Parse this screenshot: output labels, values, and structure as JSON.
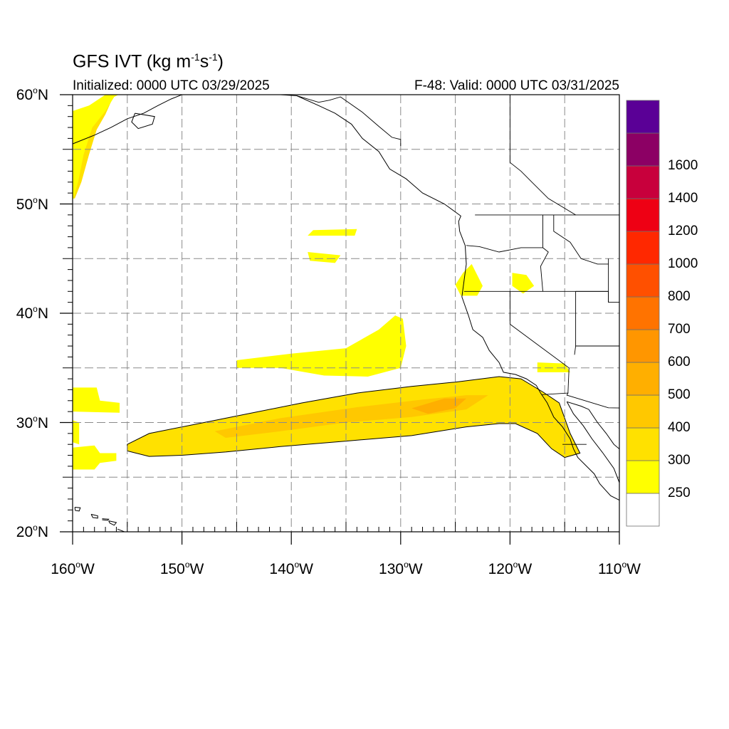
{
  "title": {
    "prefix": "GFS IVT (kg m",
    "exp1": "-1",
    "mid": "s",
    "exp2": "-1",
    "suffix": ")"
  },
  "subtitle_left": "Initialized: 0000 UTC 03/29/2025",
  "subtitle_right": "F-48: Valid: 0000 UTC 03/31/2025",
  "lat_labels": [
    {
      "num": "60",
      "suffix": "N",
      "lat": 60
    },
    {
      "num": "50",
      "suffix": "N",
      "lat": 50
    },
    {
      "num": "40",
      "suffix": "N",
      "lat": 40
    },
    {
      "num": "30",
      "suffix": "N",
      "lat": 30
    },
    {
      "num": "20",
      "suffix": "N",
      "lat": 20
    }
  ],
  "lon_labels": [
    {
      "num": "160",
      "suffix": "W",
      "lon": -160
    },
    {
      "num": "150",
      "suffix": "W",
      "lon": -150
    },
    {
      "num": "140",
      "suffix": "W",
      "lon": -140
    },
    {
      "num": "130",
      "suffix": "W",
      "lon": -130
    },
    {
      "num": "120",
      "suffix": "W",
      "lon": -120
    },
    {
      "num": "110",
      "suffix": "W",
      "lon": -110
    }
  ],
  "map_extent": {
    "lon_min": -160,
    "lon_max": -110,
    "lat_min": 20,
    "lat_max": 60
  },
  "colorbar": {
    "labels": [
      "250",
      "300",
      "400",
      "500",
      "600",
      "700",
      "800",
      "1000",
      "1200",
      "1400",
      "1600"
    ],
    "colors": [
      "#ffffff",
      "#ffff00",
      "#ffe100",
      "#ffc800",
      "#ffaf00",
      "#ff9600",
      "#ff7300",
      "#ff5000",
      "#ff2800",
      "#ee0014",
      "#c8003c",
      "#8c0064",
      "#5a0096"
    ]
  },
  "ivt_regions": [
    {
      "name": "atmospheric-river",
      "color": "#ffe100",
      "points": [
        [
          -155,
          28
        ],
        [
          -153,
          29
        ],
        [
          -149,
          29.8
        ],
        [
          -144,
          30.8
        ],
        [
          -139,
          31.8
        ],
        [
          -134,
          32.7
        ],
        [
          -129,
          33.3
        ],
        [
          -125,
          33.7
        ],
        [
          -121,
          34.2
        ],
        [
          -119,
          34
        ],
        [
          -117,
          32.8
        ],
        [
          -115.5,
          31.8
        ],
        [
          -114.5,
          29
        ],
        [
          -113.6,
          27.2
        ],
        [
          -115,
          26.8
        ],
        [
          -116.2,
          27.6
        ],
        [
          -117.5,
          29
        ],
        [
          -119.5,
          29.9
        ],
        [
          -121,
          29.9
        ],
        [
          -124,
          29.6
        ],
        [
          -129,
          28.8
        ],
        [
          -135,
          28.3
        ],
        [
          -141,
          27.8
        ],
        [
          -146,
          27.3
        ],
        [
          -150,
          27
        ],
        [
          -153,
          26.9
        ],
        [
          -155,
          27.4
        ]
      ]
    },
    {
      "name": "ar-core",
      "color": "#ffc800",
      "points": [
        [
          -147,
          29.2
        ],
        [
          -141,
          30.4
        ],
        [
          -134,
          31.4
        ],
        [
          -128,
          32.1
        ],
        [
          -124,
          32.5
        ],
        [
          -122,
          32.5
        ],
        [
          -124,
          31.2
        ],
        [
          -129,
          30.5
        ],
        [
          -135,
          30
        ],
        [
          -141,
          29.2
        ],
        [
          -146,
          28.6
        ]
      ]
    },
    {
      "name": "ar-max",
      "color": "#ffaf00",
      "points": [
        [
          -129,
          31.3
        ],
        [
          -126,
          32.2
        ],
        [
          -124,
          32.2
        ],
        [
          -125,
          31.3
        ],
        [
          -127.5,
          30.8
        ]
      ]
    },
    {
      "name": "band-35n",
      "color": "#ffff00",
      "points": [
        [
          -145,
          35.7
        ],
        [
          -140,
          36.3
        ],
        [
          -135,
          36.8
        ],
        [
          -132,
          38.5
        ],
        [
          -130.5,
          39.8
        ],
        [
          -129.8,
          39.5
        ],
        [
          -129.5,
          37
        ],
        [
          -130,
          35
        ],
        [
          -133,
          34.2
        ],
        [
          -137,
          34.3
        ],
        [
          -141,
          35
        ],
        [
          -145,
          35
        ]
      ]
    },
    {
      "name": "blob-48n",
      "color": "#ffff00",
      "points": [
        [
          -138,
          47.6
        ],
        [
          -134,
          47.7
        ],
        [
          -134.2,
          47.1
        ],
        [
          -138.5,
          47.1
        ]
      ]
    },
    {
      "name": "blob-45n",
      "color": "#ffff00",
      "points": [
        [
          -138.5,
          45.6
        ],
        [
          -135.5,
          45.3
        ],
        [
          -136,
          44.6
        ],
        [
          -138.3,
          44.8
        ]
      ]
    },
    {
      "name": "blob-ncal",
      "color": "#ffff00",
      "points": [
        [
          -124.3,
          43.7
        ],
        [
          -123.5,
          44.5
        ],
        [
          -123,
          43.5
        ],
        [
          -122.5,
          42.5
        ],
        [
          -123,
          41.6
        ],
        [
          -124.5,
          41.6
        ],
        [
          -125,
          42.6
        ]
      ]
    },
    {
      "name": "blob-nevada",
      "color": "#ffff00",
      "points": [
        [
          -119.8,
          43.7
        ],
        [
          -118.5,
          43.5
        ],
        [
          -117.8,
          42.5
        ],
        [
          -118.8,
          41.8
        ],
        [
          -119.8,
          42.5
        ]
      ]
    },
    {
      "name": "blob-socal",
      "color": "#ffff00",
      "points": [
        [
          -117.5,
          35.5
        ],
        [
          -115,
          35.4
        ],
        [
          -114.5,
          34.6
        ],
        [
          -117.5,
          34.6
        ]
      ]
    },
    {
      "name": "blob-w33n",
      "color": "#ffff00",
      "points": [
        [
          -160,
          33.2
        ],
        [
          -157.8,
          33.2
        ],
        [
          -157.5,
          32
        ],
        [
          -155.7,
          31.8
        ],
        [
          -155.7,
          30.9
        ],
        [
          -160,
          31
        ]
      ]
    },
    {
      "name": "blob-w27n",
      "color": "#ffff00",
      "points": [
        [
          -160,
          27.7
        ],
        [
          -158,
          27.9
        ],
        [
          -157.5,
          27.2
        ],
        [
          -156,
          27.2
        ],
        [
          -156,
          26.5
        ],
        [
          -157.5,
          26.3
        ],
        [
          -158,
          25.7
        ],
        [
          -160,
          25.7
        ]
      ]
    },
    {
      "name": "blob-w30n",
      "color": "#ffff00",
      "points": [
        [
          -160,
          30.2
        ],
        [
          -159.4,
          30
        ],
        [
          -159.4,
          28
        ],
        [
          -160,
          28.2
        ]
      ]
    },
    {
      "name": "blob-alaska",
      "color": "#ffe100",
      "points": [
        [
          -160,
          57.8
        ],
        [
          -157.5,
          58.8
        ],
        [
          -156.5,
          59.8
        ],
        [
          -156.6,
          60
        ],
        [
          -156.2,
          60
        ],
        [
          -157,
          58.2
        ],
        [
          -157.8,
          56.8
        ],
        [
          -158.5,
          54.5
        ],
        [
          -159.2,
          52
        ],
        [
          -159.8,
          50.5
        ],
        [
          -160,
          50.5
        ]
      ]
    },
    {
      "name": "blob-alaska-edge",
      "color": "#ffff00",
      "points": [
        [
          -160,
          50.3
        ],
        [
          -159.5,
          52
        ],
        [
          -159,
          54.5
        ],
        [
          -158.2,
          57
        ],
        [
          -157,
          58.5
        ],
        [
          -156.2,
          59.8
        ],
        [
          -155.8,
          60
        ],
        [
          -157,
          60
        ],
        [
          -158.5,
          59
        ],
        [
          -160,
          58.5
        ]
      ]
    }
  ],
  "coast_lines": [
    {
      "name": "north-american-coast",
      "points": [
        [
          -139.5,
          59.9
        ],
        [
          -137.5,
          59
        ],
        [
          -136,
          58.3
        ],
        [
          -134.5,
          57.3
        ],
        [
          -133.5,
          56
        ],
        [
          -132,
          54.8
        ],
        [
          -131,
          53.2
        ],
        [
          -129.5,
          52.3
        ],
        [
          -128,
          51
        ],
        [
          -126,
          50
        ],
        [
          -124.5,
          48.9
        ],
        [
          -124.7,
          48.4
        ],
        [
          -124.6,
          47.5
        ],
        [
          -124.1,
          46.2
        ],
        [
          -124,
          44.5
        ],
        [
          -124.2,
          43
        ],
        [
          -124.4,
          41.5
        ],
        [
          -123.8,
          39.8
        ],
        [
          -123.4,
          38.5
        ],
        [
          -122.5,
          37.8
        ],
        [
          -121.9,
          36.6
        ],
        [
          -121,
          35.5
        ],
        [
          -120.6,
          34.6
        ],
        [
          -119.5,
          34.4
        ],
        [
          -118.5,
          34
        ],
        [
          -117.6,
          33.4
        ],
        [
          -117.2,
          32.7
        ],
        [
          -116.6,
          31.8
        ],
        [
          -116,
          30.5
        ],
        [
          -115.2,
          29.6
        ],
        [
          -114.5,
          28.5
        ],
        [
          -114.2,
          27.6
        ],
        [
          -113.8,
          26.8
        ],
        [
          -112.3,
          25.3
        ],
        [
          -111.8,
          24.4
        ],
        [
          -110.8,
          23.3
        ],
        [
          -110,
          22.9
        ]
      ]
    },
    {
      "name": "gulf-of-california",
      "points": [
        [
          -114.8,
          31.9
        ],
        [
          -114.2,
          30.8
        ],
        [
          -113.3,
          29.7
        ],
        [
          -112.5,
          28.5
        ],
        [
          -111.5,
          27.2
        ],
        [
          -110.5,
          25.8
        ],
        [
          -110,
          24.5
        ]
      ]
    },
    {
      "name": "alaska-coast",
      "points": [
        [
          -150,
          60
        ],
        [
          -151,
          59.6
        ],
        [
          -152.2,
          59
        ],
        [
          -153.5,
          58.3
        ],
        [
          -155,
          57.8
        ],
        [
          -156.5,
          57
        ],
        [
          -158,
          56.3
        ],
        [
          -159.5,
          55.7
        ],
        [
          -160,
          55.5
        ]
      ]
    },
    {
      "name": "kodiak-island",
      "points": [
        [
          -154.3,
          58.3
        ],
        [
          -152.5,
          58
        ],
        [
          -152.7,
          57.3
        ],
        [
          -154,
          56.9
        ],
        [
          -154.6,
          57.5
        ],
        [
          -154.3,
          58.3
        ]
      ]
    },
    {
      "name": "mexico-mainland",
      "points": [
        [
          -110,
          25.5
        ],
        [
          -109.5,
          26.5
        ],
        [
          -109.9,
          27.5
        ],
        [
          -110.5,
          28
        ],
        [
          -111.2,
          29
        ],
        [
          -112,
          30
        ],
        [
          -112.8,
          31.2
        ],
        [
          -113.5,
          31.5
        ],
        [
          -114.8,
          31.9
        ]
      ]
    },
    {
      "name": "hawaii-kauai",
      "points": [
        [
          -159.8,
          22.25
        ],
        [
          -159.3,
          22.2
        ],
        [
          -159.4,
          21.9
        ],
        [
          -159.75,
          21.95
        ],
        [
          -159.8,
          22.25
        ]
      ]
    },
    {
      "name": "hawaii-oahu",
      "points": [
        [
          -158.3,
          21.6
        ],
        [
          -157.7,
          21.45
        ],
        [
          -157.7,
          21.25
        ],
        [
          -158.15,
          21.3
        ],
        [
          -158.3,
          21.6
        ]
      ]
    },
    {
      "name": "hawaii-molokai",
      "points": [
        [
          -157.3,
          21.2
        ],
        [
          -156.7,
          21.15
        ],
        [
          -156.8,
          21.05
        ],
        [
          -157.3,
          21.1
        ]
      ]
    },
    {
      "name": "hawaii-maui",
      "points": [
        [
          -156.7,
          21.0
        ],
        [
          -156.0,
          20.85
        ],
        [
          -156.2,
          20.6
        ],
        [
          -156.6,
          20.8
        ],
        [
          -156.7,
          21.0
        ]
      ]
    },
    {
      "name": "hawaii-big-island",
      "points": [
        [
          -155.9,
          20.25
        ],
        [
          -155.0,
          19.9
        ],
        [
          -155.0,
          19.6
        ],
        [
          -155.6,
          19.5
        ]
      ]
    }
  ],
  "border_lines": [
    {
      "name": "canada-us-border",
      "points": [
        [
          -123.2,
          49
        ],
        [
          -110,
          49
        ]
      ]
    },
    {
      "name": "alaska-canada-border",
      "points": [
        [
          -141,
          60
        ],
        [
          -139.5,
          59.9
        ],
        [
          -137.5,
          59.3
        ],
        [
          -136.5,
          59.5
        ],
        [
          -135.5,
          59.8
        ],
        [
          -133.5,
          58.4
        ],
        [
          -132,
          57.1
        ],
        [
          -130.8,
          56.1
        ],
        [
          -130,
          55.9
        ],
        [
          -130,
          55.3
        ]
      ]
    },
    {
      "name": "mexico-us-border",
      "points": [
        [
          -117.1,
          32.55
        ],
        [
          -114.7,
          32.7
        ],
        [
          -114.8,
          32.5
        ],
        [
          -111,
          31.35
        ],
        [
          -110,
          31.33
        ]
      ]
    },
    {
      "name": "baja-state-border",
      "points": [
        [
          -115.2,
          28
        ],
        [
          -113,
          28
        ]
      ]
    },
    {
      "name": "wa-or",
      "points": [
        [
          -124,
          46.2
        ],
        [
          -122.8,
          46.1
        ],
        [
          -121,
          45.6
        ],
        [
          -119,
          46
        ],
        [
          -117,
          46
        ]
      ]
    },
    {
      "name": "or-ca",
      "points": [
        [
          -124.2,
          42
        ],
        [
          -120,
          42
        ],
        [
          -117,
          42
        ],
        [
          -111,
          42
        ]
      ]
    },
    {
      "name": "ca-nv",
      "points": [
        [
          -120,
          42
        ],
        [
          -120,
          39
        ],
        [
          -114.6,
          35
        ]
      ]
    },
    {
      "name": "ca-az",
      "points": [
        [
          -114.6,
          35
        ],
        [
          -114.7,
          32.7
        ]
      ]
    },
    {
      "name": "id-border",
      "points": [
        [
          -117,
          49
        ],
        [
          -117,
          46
        ],
        [
          -116.5,
          45.6
        ],
        [
          -117.2,
          44.3
        ],
        [
          -117,
          42
        ]
      ]
    },
    {
      "name": "nv-ut",
      "points": [
        [
          -114,
          42
        ],
        [
          -114,
          37
        ],
        [
          -114.1,
          36.2
        ]
      ]
    },
    {
      "name": "az-ut",
      "points": [
        [
          -114,
          37
        ],
        [
          -110,
          37
        ]
      ]
    },
    {
      "name": "mt-id",
      "points": [
        [
          -116,
          49
        ],
        [
          -116,
          47.5
        ],
        [
          -114.5,
          46.5
        ],
        [
          -113.5,
          45
        ],
        [
          -112,
          44.5
        ],
        [
          -111,
          44.5
        ]
      ]
    },
    {
      "name": "wy-west",
      "points": [
        [
          -111,
          45
        ],
        [
          -111,
          41
        ]
      ]
    },
    {
      "name": "ut-north",
      "points": [
        [
          -114,
          42
        ],
        [
          -111,
          42
        ],
        [
          -111,
          41
        ],
        [
          -110,
          41
        ]
      ]
    },
    {
      "name": "bc-alberta",
      "points": [
        [
          -120,
          60
        ],
        [
          -120,
          53.8
        ],
        [
          -119,
          53
        ],
        [
          -118,
          52
        ],
        [
          -116.5,
          50.5
        ],
        [
          -114,
          49
        ]
      ]
    }
  ]
}
